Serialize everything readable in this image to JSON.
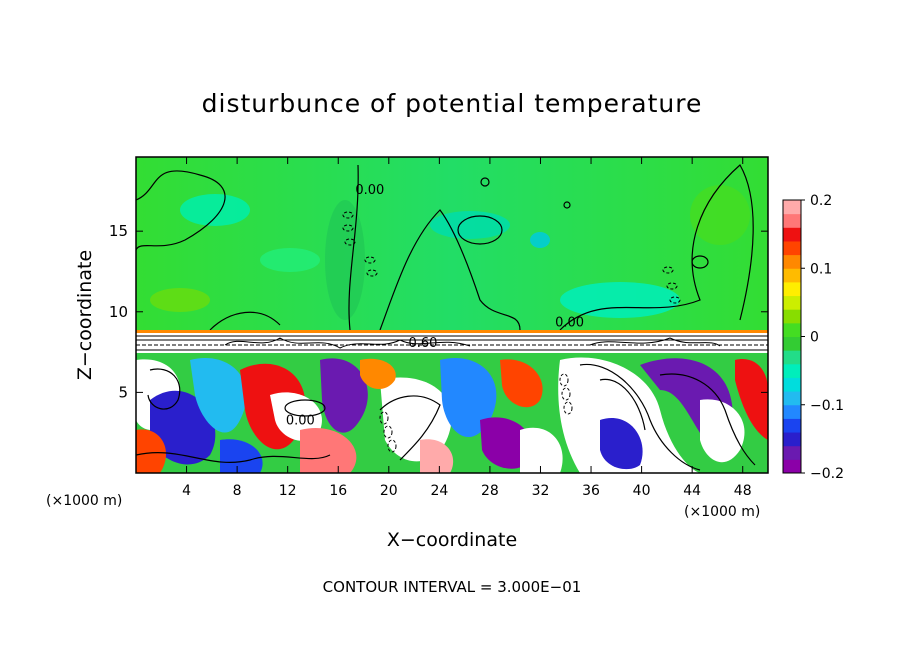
{
  "chart_data": {
    "type": "heatmap",
    "title": "disturbunce of potential temperature",
    "xlabel": "X−coordinate",
    "ylabel": "Z−coordinate",
    "x_unit_label": "(×1000 m)",
    "z_unit_label": "(×1000 m)",
    "xlim": [
      0,
      50
    ],
    "ylim": [
      0,
      19.6
    ],
    "x_ticks": [
      {
        "value": 4,
        "label": "4"
      },
      {
        "value": 8,
        "label": "8"
      },
      {
        "value": 12,
        "label": "12"
      },
      {
        "value": 16,
        "label": "16"
      },
      {
        "value": 20,
        "label": "20"
      },
      {
        "value": 24,
        "label": "24"
      },
      {
        "value": 28,
        "label": "28"
      },
      {
        "value": 32,
        "label": "32"
      },
      {
        "value": 36,
        "label": "36"
      },
      {
        "value": 40,
        "label": "40"
      },
      {
        "value": 44,
        "label": "44"
      },
      {
        "value": 48,
        "label": "48"
      }
    ],
    "y_ticks": [
      {
        "value": 5,
        "label": "5"
      },
      {
        "value": 10,
        "label": "10"
      },
      {
        "value": 15,
        "label": "15"
      }
    ],
    "colorbar": {
      "range": [
        -0.2,
        0.2
      ],
      "ticks": [
        {
          "value": 0.2,
          "label": "0.2"
        },
        {
          "value": 0.1,
          "label": "0.1"
        },
        {
          "value": 0,
          "label": "0"
        },
        {
          "value": -0.1,
          "label": "−0.1"
        },
        {
          "value": -0.2,
          "label": "−0.2"
        }
      ],
      "colors": [
        "#8b00a8",
        "#6a1ab0",
        "#2a1fcc",
        "#1a44f0",
        "#2288ff",
        "#22bbf0",
        "#00dddd",
        "#00eebb",
        "#22dd88",
        "#33cc33",
        "#44dd22",
        "#88dd00",
        "#ccee00",
        "#ffee00",
        "#ffbb00",
        "#ff8800",
        "#ff4400",
        "#ee1111",
        "#ff7777",
        "#ffaaaa"
      ]
    },
    "contour_labels": [
      {
        "x": 18.5,
        "y": 17.3,
        "label": "0.00"
      },
      {
        "x": 34.3,
        "y": 9.1,
        "label": "0.00"
      },
      {
        "x": 22.7,
        "y": 7.8,
        "label": "0.60"
      },
      {
        "x": 13.0,
        "y": 3.0,
        "label": "0.00"
      }
    ],
    "annotation": "CONTOUR INTERVAL = 3.000E−01",
    "grid": false,
    "legend": "colorbar-right"
  }
}
